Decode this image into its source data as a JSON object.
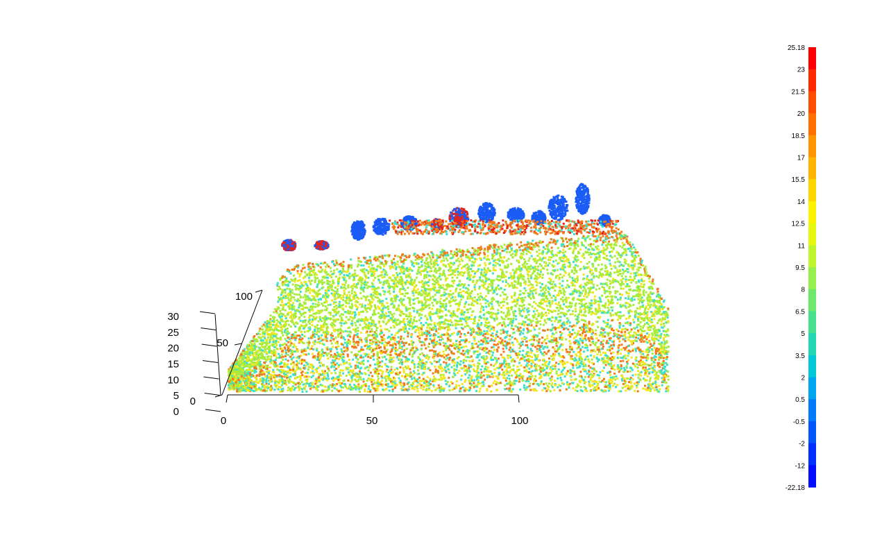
{
  "chart_data": {
    "type": "scatter",
    "subtype": "3d-point-cloud",
    "title": "",
    "x_axis": {
      "ticks": [
        "0",
        "50",
        "100"
      ],
      "range": [
        0,
        150
      ]
    },
    "y_axis": {
      "ticks": [
        "0",
        "50",
        "100"
      ],
      "range": [
        0,
        130
      ]
    },
    "z_axis": {
      "ticks": [
        "0",
        "5",
        "10",
        "15",
        "20",
        "25",
        "30"
      ],
      "range": [
        0,
        35
      ]
    },
    "color_attribute_range": [
      -22.18,
      25.18
    ],
    "colorbar": {
      "labels": [
        "25.18",
        "23",
        "21.5",
        "20",
        "18.5",
        "17",
        "15.5",
        "14",
        "12.5",
        "11",
        "9.5",
        "8",
        "6.5",
        "5",
        "3.5",
        "2",
        "0.5",
        "-0.5",
        "-2",
        "-12",
        "-22.18"
      ],
      "colors": [
        "#ff0000",
        "#ff2a00",
        "#ff4d00",
        "#ff7000",
        "#ff9300",
        "#ffb400",
        "#ffd500",
        "#fff200",
        "#e8f70f",
        "#bff52c",
        "#96f04a",
        "#6de86b",
        "#47e08f",
        "#23d7b5",
        "#00c8d8",
        "#00a5f0",
        "#007cf8",
        "#0055fb",
        "#0030fd",
        "#000dff"
      ]
    },
    "colors": {
      "canopy_top_blue": "#1a5cf5",
      "canopy_top_red": "#e8231a",
      "canopy_orange": "#f07a1c",
      "main_green": "#a8ec3a",
      "yellow": "#f3e61c",
      "cyan": "#3fe0c8"
    }
  }
}
